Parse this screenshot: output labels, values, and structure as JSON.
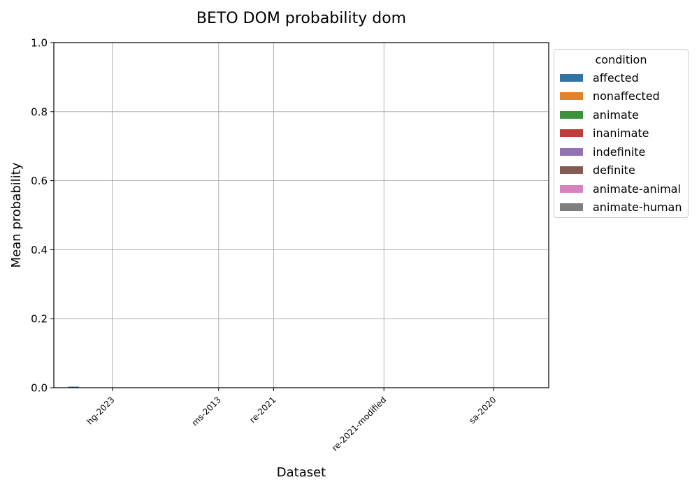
{
  "chart_data": {
    "type": "bar",
    "title": "BETO DOM probability dom",
    "xlabel": "Dataset",
    "ylabel": "Mean probability",
    "ylim": [
      0,
      1
    ],
    "yticks": [
      "0.0",
      "0.2",
      "0.4",
      "0.6",
      "0.8",
      "1.0"
    ],
    "grid": true,
    "legend_title": "condition",
    "legend_placement": "outside-right",
    "categories": [
      "hg-2023",
      "ms-2013",
      "re-2021",
      "re-2021-modified",
      "sa-2020"
    ],
    "series": [
      {
        "name": "affected",
        "color": "#3274a1",
        "values": [
          0.002,
          0,
          0,
          0,
          0
        ]
      },
      {
        "name": "nonaffected",
        "color": "#e1812c",
        "values": [
          0,
          0,
          0,
          0,
          0
        ]
      },
      {
        "name": "animate",
        "color": "#3a923a",
        "values": [
          0,
          0,
          0,
          0,
          0
        ]
      },
      {
        "name": "inanimate",
        "color": "#c03d3e",
        "values": [
          0,
          0,
          0,
          0,
          0
        ]
      },
      {
        "name": "indefinite",
        "color": "#9372b2",
        "values": [
          0,
          0,
          0,
          0,
          0
        ]
      },
      {
        "name": "definite",
        "color": "#845b53",
        "values": [
          0,
          0,
          0,
          0,
          0
        ]
      },
      {
        "name": "animate-animal",
        "color": "#d684bd",
        "values": [
          0,
          0,
          0,
          0,
          0
        ]
      },
      {
        "name": "animate-human",
        "color": "#7f7f7f",
        "values": [
          0,
          0,
          0,
          0,
          0
        ]
      }
    ]
  }
}
